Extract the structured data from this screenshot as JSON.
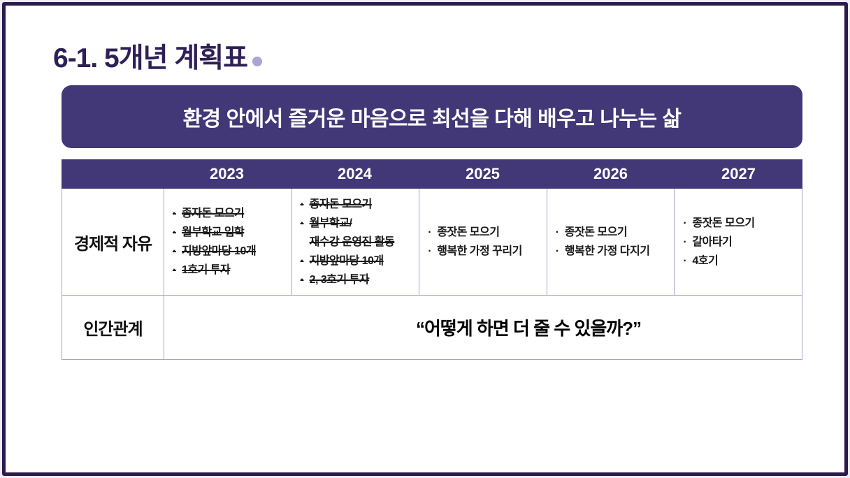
{
  "slide": {
    "title": "6-1. 5개년 계획표",
    "vision_banner": "환경 안에서 즐거운 마음으로 최선을 다해 배우고 나누는 삶"
  },
  "plan_table": {
    "corner_header": "",
    "year_headers": [
      "2023",
      "2024",
      "2025",
      "2026",
      "2027"
    ],
    "rows": [
      {
        "label": "경제적 자유",
        "cells": [
          {
            "year": "2023",
            "items": [
              {
                "bullet": "·",
                "text": "종자돈 모으기",
                "struck": true
              },
              {
                "bullet": "·",
                "text": "월부학교 입학",
                "struck": true
              },
              {
                "bullet": "·",
                "text": "지방앞마당 10개",
                "struck": true
              },
              {
                "bullet": "·",
                "text": "1호기 투자",
                "struck": true
              }
            ]
          },
          {
            "year": "2024",
            "items": [
              {
                "bullet": "·",
                "text": "종자돈 모으기",
                "struck": true
              },
              {
                "bullet": "·",
                "text": "월부학교/",
                "struck": true
              },
              {
                "bullet": "",
                "text": "재수강 운영진 활동",
                "struck": true
              },
              {
                "bullet": "·",
                "text": "지방앞마당 10개",
                "struck": true
              },
              {
                "bullet": "·",
                "text": "2, 3호기 투자",
                "struck": true
              }
            ]
          },
          {
            "year": "2025",
            "items": [
              {
                "bullet": "·",
                "text": "종잣돈 모으기",
                "struck": false
              },
              {
                "bullet": "·",
                "text": "행복한 가정 꾸리기",
                "struck": false
              }
            ]
          },
          {
            "year": "2026",
            "items": [
              {
                "bullet": "·",
                "text": "종잣돈 모으기",
                "struck": false
              },
              {
                "bullet": "·",
                "text": "행복한 가정 다지기",
                "struck": false
              }
            ]
          },
          {
            "year": "2027",
            "items": [
              {
                "bullet": "·",
                "text": "종잣돈 모으기",
                "struck": false
              },
              {
                "bullet": "·",
                "text": "갈아타기",
                "struck": false
              },
              {
                "bullet": "·",
                "text": "4호기",
                "struck": false
              }
            ]
          }
        ]
      },
      {
        "label": "인간관계",
        "quote": "“어떻게 하면 더 줄 수 있을까?”"
      }
    ]
  },
  "colors": {
    "accent_purple": "#423878",
    "frame_purple": "#2B1A4E",
    "title_purple": "#2E2057",
    "dot_lavender": "#ACA4D2",
    "grid_line": "#A9A2CE"
  }
}
